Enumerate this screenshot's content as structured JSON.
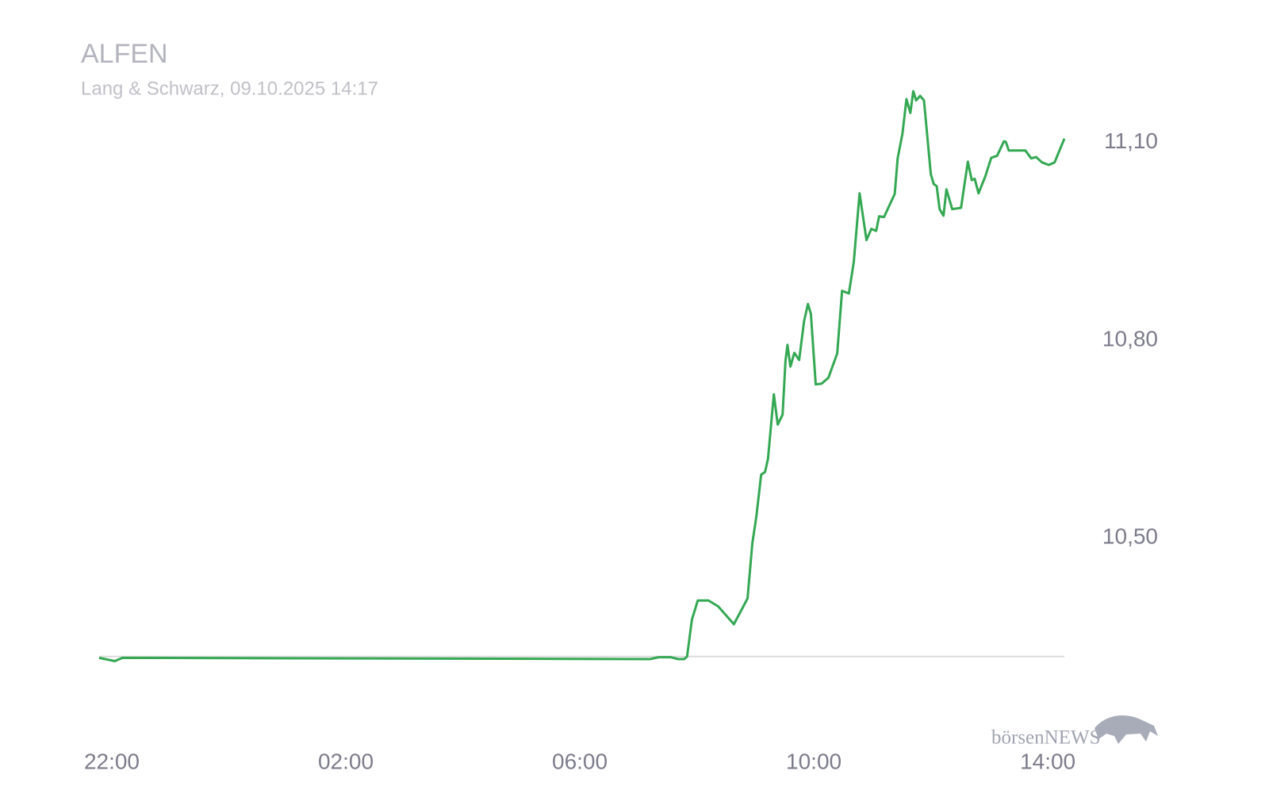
{
  "chart_data": {
    "type": "line",
    "title": "ALFEN",
    "subtitle": "Lang & Schwarz, 09.10.2025 14:17",
    "logo": "börsenNEWS",
    "color": "#34a853",
    "x": [
      "21:47",
      "22:03",
      "22:11",
      "07:12",
      "07:21",
      "07:33",
      "07:41",
      "07:47",
      "07:50",
      "07:55",
      "08:01",
      "08:12",
      "08:22",
      "08:38",
      "08:52",
      "08:57",
      "09:01",
      "09:06",
      "09:10",
      "09:13",
      "09:19",
      "09:23",
      "09:28",
      "09:31",
      "09:33",
      "09:36",
      "09:40",
      "09:45",
      "09:50",
      "09:54",
      "09:57",
      "10:02",
      "10:08",
      "10:15",
      "10:24",
      "10:29",
      "10:36",
      "10:41",
      "10:47",
      "10:54",
      "10:59",
      "11:04",
      "11:07",
      "11:12",
      "11:23",
      "11:26",
      "11:31",
      "11:35",
      "11:39",
      "11:42",
      "11:45",
      "11:49",
      "11:53",
      "12:00",
      "12:03",
      "12:06",
      "12:09",
      "12:13",
      "12:16",
      "12:22",
      "12:31",
      "12:38",
      "12:42",
      "12:45",
      "12:49",
      "12:56",
      "13:02",
      "13:08",
      "13:15",
      "13:17",
      "13:20",
      "13:37",
      "13:43",
      "13:48",
      "13:54",
      "14:01",
      "14:07",
      "14:17"
    ],
    "values": [
      10.318,
      10.313,
      10.318,
      10.316,
      10.319,
      10.319,
      10.316,
      10.316,
      10.32,
      10.376,
      10.405,
      10.405,
      10.396,
      10.369,
      10.408,
      10.492,
      10.531,
      10.596,
      10.6,
      10.62,
      10.718,
      10.672,
      10.687,
      10.769,
      10.793,
      10.76,
      10.781,
      10.77,
      10.829,
      10.855,
      10.84,
      10.733,
      10.734,
      10.743,
      10.78,
      10.875,
      10.871,
      10.919,
      11.023,
      10.952,
      10.969,
      10.966,
      10.988,
      10.987,
      11.022,
      11.076,
      11.114,
      11.166,
      11.145,
      11.178,
      11.164,
      11.171,
      11.164,
      11.052,
      11.037,
      11.034,
      10.999,
      10.989,
      11.029,
      10.999,
      11.001,
      11.071,
      11.043,
      11.045,
      11.023,
      11.049,
      11.077,
      11.08,
      11.102,
      11.101,
      11.088,
      11.088,
      11.076,
      11.078,
      11.07,
      11.066,
      11.07,
      11.106
    ],
    "baseline": 10.32,
    "xlim": [
      "21:47",
      "14:17"
    ],
    "xticks": [
      "22:00",
      "02:00",
      "06:00",
      "10:00",
      "14:00"
    ],
    "ylim": [
      10.233,
      11.196
    ],
    "yticks": [
      {
        "value": 10.5,
        "label": "10,50"
      },
      {
        "value": 10.8,
        "label": "10,80"
      },
      {
        "value": 11.1,
        "label": "11,10"
      }
    ],
    "grid": false
  }
}
